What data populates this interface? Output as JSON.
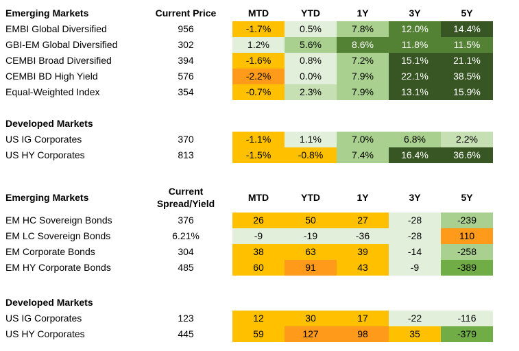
{
  "colors": {
    "yellow": "#ffc000",
    "orange": "#ff9a1a",
    "light_green": "#e2efda",
    "green": "#a9d08e",
    "dark_green": "#375623"
  },
  "tables": [
    {
      "title": "Emerging Markets",
      "value_header": "Current Price",
      "columns": [
        "MTD",
        "YTD",
        "1Y",
        "3Y",
        "5Y"
      ],
      "rows": [
        {
          "name": "EMBI Global Diversified",
          "value": "956",
          "cells": [
            "-1.7%",
            "0.5%",
            "7.8%",
            "12.0%",
            "14.4%"
          ],
          "colors": [
            "y",
            "vl",
            "m",
            "dg",
            "vd"
          ]
        },
        {
          "name": "GBI-EM Global Diversified",
          "value": "302",
          "cells": [
            "1.2%",
            "5.6%",
            "8.6%",
            "11.8%",
            "11.5%"
          ],
          "colors": [
            "vl",
            "m",
            "dg",
            "dg",
            "dg"
          ]
        },
        {
          "name": "CEMBI Broad Diversified",
          "value": "394",
          "cells": [
            "-1.6%",
            "0.8%",
            "7.2%",
            "15.1%",
            "21.1%"
          ],
          "colors": [
            "y",
            "vl",
            "m",
            "vd",
            "vd"
          ]
        },
        {
          "name": "CEMBI BD High Yield",
          "value": "576",
          "cells": [
            "-2.2%",
            "0.0%",
            "7.9%",
            "22.1%",
            "38.5%"
          ],
          "colors": [
            "o",
            "vl",
            "m",
            "vd",
            "vd"
          ]
        },
        {
          "name": "Equal-Weighted Index",
          "value": "354",
          "cells": [
            "-0.7%",
            "2.3%",
            "7.9%",
            "13.1%",
            "15.9%"
          ],
          "colors": [
            "y",
            "l",
            "m",
            "vd",
            "vd"
          ]
        }
      ]
    },
    {
      "title": "Developed Markets",
      "rows": [
        {
          "name": "US IG Corporates",
          "value": "370",
          "cells": [
            "-1.1%",
            "1.1%",
            "7.0%",
            "6.8%",
            "2.2%"
          ],
          "colors": [
            "y",
            "vl",
            "m",
            "m",
            "l"
          ]
        },
        {
          "name": "US HY Corporates",
          "value": "813",
          "cells": [
            "-1.5%",
            "-0.8%",
            "7.4%",
            "16.4%",
            "36.6%"
          ],
          "colors": [
            "y",
            "y",
            "m",
            "vd",
            "vd"
          ]
        }
      ]
    },
    {
      "title": "Emerging Markets",
      "value_header_line1": "Current",
      "value_header_line2": "Spread/Yield",
      "columns": [
        "MTD",
        "YTD",
        "1Y",
        "3Y",
        "5Y"
      ],
      "rows": [
        {
          "name": "EM HC Sovereign Bonds",
          "value": "376",
          "cells": [
            "26",
            "50",
            "27",
            "-28",
            "-239"
          ],
          "colors": [
            "y",
            "y",
            "y",
            "vl",
            "m"
          ]
        },
        {
          "name": "EM LC Sovereign Bonds",
          "value": "6.21%",
          "cells": [
            "-9",
            "-19",
            "-36",
            "-28",
            "110"
          ],
          "colors": [
            "vl",
            "vl",
            "vl",
            "vl",
            "o"
          ]
        },
        {
          "name": "EM Corporate Bonds",
          "value": "304",
          "cells": [
            "38",
            "63",
            "39",
            "-14",
            "-258"
          ],
          "colors": [
            "y",
            "y",
            "y",
            "vl",
            "m"
          ]
        },
        {
          "name": "EM HY Corporate Bonds",
          "value": "485",
          "cells": [
            "60",
            "91",
            "43",
            "-9",
            "-389"
          ],
          "colors": [
            "y",
            "o",
            "y",
            "vl",
            "g"
          ]
        }
      ]
    },
    {
      "title": "Developed Markets",
      "rows": [
        {
          "name": "US IG Corporates",
          "value": "123",
          "cells": [
            "12",
            "30",
            "17",
            "-22",
            "-116"
          ],
          "colors": [
            "y",
            "y",
            "y",
            "vl",
            "vl"
          ]
        },
        {
          "name": "US HY Corporates",
          "value": "445",
          "cells": [
            "59",
            "127",
            "98",
            "35",
            "-379"
          ],
          "colors": [
            "y",
            "o",
            "o",
            "y",
            "g"
          ]
        }
      ]
    }
  ]
}
